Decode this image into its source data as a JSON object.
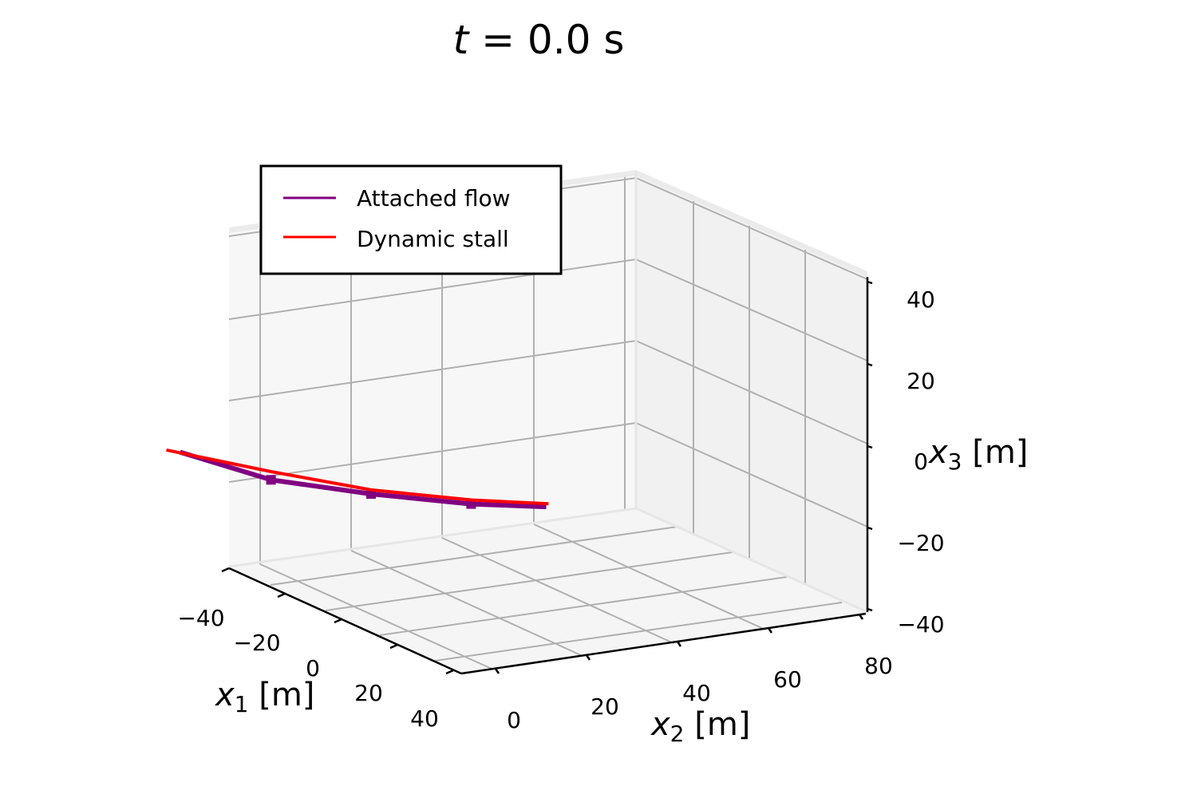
{
  "chart_data": {
    "type": "line",
    "projection": "3d",
    "title": {
      "var": "t",
      "eq": " = ",
      "value": "0.0",
      "unit": " s"
    },
    "axes": {
      "x1": {
        "sym": "x",
        "sub": "1",
        "unit": " [m]",
        "ticks": [
          "−40",
          "−20",
          "0",
          "20",
          "40"
        ],
        "range": [
          -50,
          50
        ]
      },
      "x2": {
        "sym": "x",
        "sub": "2",
        "unit": " [m]",
        "ticks": [
          "0",
          "20",
          "40",
          "60",
          "80"
        ],
        "range": [
          -10,
          90
        ]
      },
      "x3": {
        "sym": "x",
        "sub": "3",
        "unit": " [m]",
        "ticks": [
          "−40",
          "−20",
          "0",
          "20",
          "40"
        ],
        "range": [
          -40,
          40
        ]
      }
    },
    "grid": true,
    "legend": {
      "placement": "upper-left",
      "entries": [
        {
          "label": "Attached flow",
          "color": "#800080"
        },
        {
          "label": "Dynamic stall",
          "color": "#ff0000"
        }
      ]
    },
    "series": [
      {
        "name": "Attached flow",
        "color": "#800080",
        "marker": "square",
        "points": [
          {
            "x1": -42,
            "x2": 0,
            "x3": 8
          },
          {
            "x1": -22,
            "x2": 0,
            "x3": -2
          },
          {
            "x1": 0,
            "x2": 0,
            "x3": -9
          },
          {
            "x1": 22,
            "x2": 0,
            "x3": -15
          },
          {
            "x1": 38,
            "x2": 1,
            "x3": -18
          }
        ],
        "marker_points": [
          1,
          2,
          3
        ]
      },
      {
        "name": "Dynamic stall",
        "color": "#ff0000",
        "marker": "none",
        "points": [
          {
            "x1": -45,
            "x2": 0,
            "x3": 9
          },
          {
            "x1": -22,
            "x2": 0,
            "x3": 0
          },
          {
            "x1": 0,
            "x2": 0,
            "x3": -8
          },
          {
            "x1": 22,
            "x2": 0,
            "x3": -14
          },
          {
            "x1": 38,
            "x2": 2,
            "x3": -17
          }
        ]
      }
    ]
  }
}
